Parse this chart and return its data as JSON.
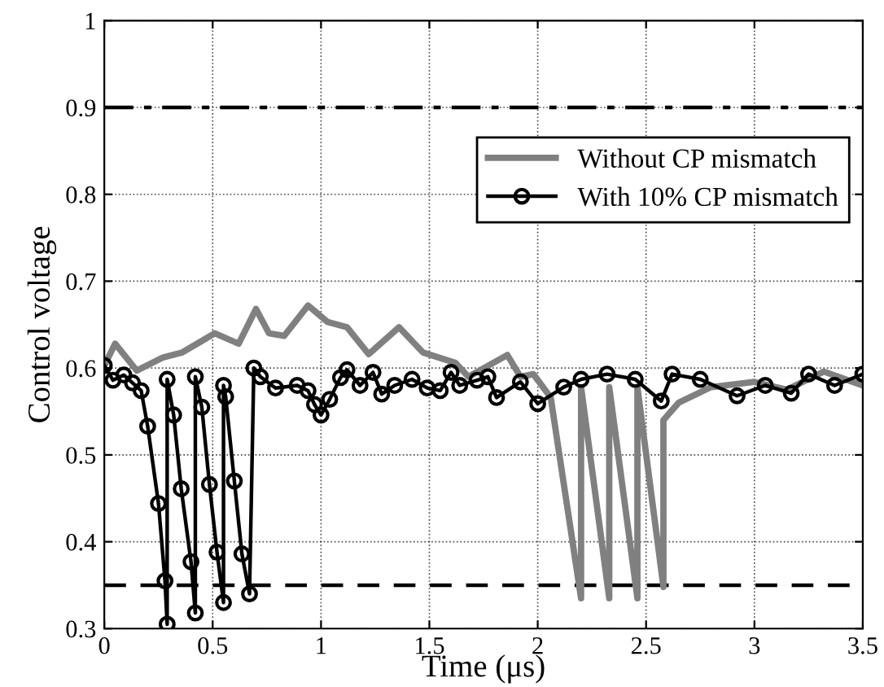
{
  "chart_data": {
    "type": "line",
    "xlabel": "Time (μs)",
    "ylabel": "Control voltage",
    "xlim": [
      0,
      3.5
    ],
    "ylim": [
      0.3,
      1
    ],
    "xticks": [
      0,
      0.5,
      1,
      1.5,
      2,
      2.5,
      3,
      3.5
    ],
    "yticks": [
      0.3,
      0.4,
      0.5,
      0.6,
      0.7,
      0.8,
      0.9,
      1
    ],
    "grid": true,
    "legend": "top right",
    "series": [
      {
        "name": "Without CP mismatch",
        "color": "#808080",
        "marker": "none",
        "x": [
          0,
          0.05,
          0.15,
          0.27,
          0.36,
          0.51,
          0.62,
          0.7,
          0.76,
          0.83,
          0.94,
          1.03,
          1.12,
          1.22,
          1.36,
          1.47,
          1.62,
          1.68,
          1.86,
          1.92,
          1.98,
          2.06,
          2.2,
          2.2,
          2.33,
          2.33,
          2.46,
          2.46,
          2.58,
          2.58,
          2.65,
          2.8,
          3.0,
          3.15,
          3.32,
          3.5
        ],
        "values": [
          0.603,
          0.628,
          0.597,
          0.612,
          0.618,
          0.64,
          0.628,
          0.668,
          0.64,
          0.637,
          0.672,
          0.653,
          0.647,
          0.616,
          0.647,
          0.618,
          0.606,
          0.59,
          0.615,
          0.59,
          0.593,
          0.566,
          0.335,
          0.578,
          0.335,
          0.578,
          0.335,
          0.578,
          0.348,
          0.54,
          0.56,
          0.578,
          0.584,
          0.575,
          0.596,
          0.58
        ]
      },
      {
        "name": "With 10% CP mismatch",
        "color": "#000000",
        "marker": "circle",
        "x": [
          0,
          0.04,
          0.09,
          0.13,
          0.17,
          0.2,
          0.25,
          0.28,
          0.29,
          0.29,
          0.32,
          0.355,
          0.4,
          0.42,
          0.42,
          0.45,
          0.485,
          0.52,
          0.55,
          0.55,
          0.56,
          0.6,
          0.635,
          0.67,
          0.69,
          0.72,
          0.79,
          0.89,
          0.94,
          0.97,
          1.0,
          1.04,
          1.09,
          1.12,
          1.18,
          1.24,
          1.28,
          1.34,
          1.42,
          1.49,
          1.55,
          1.6,
          1.64,
          1.72,
          1.77,
          1.81,
          1.92,
          2.0,
          2.12,
          2.2,
          2.32,
          2.45,
          2.57,
          2.62,
          2.75,
          2.92,
          3.05,
          3.17,
          3.25,
          3.37,
          3.5
        ],
        "values": [
          0.603,
          0.586,
          0.592,
          0.583,
          0.574,
          0.533,
          0.444,
          0.355,
          0.305,
          0.587,
          0.546,
          0.461,
          0.377,
          0.318,
          0.59,
          0.555,
          0.466,
          0.388,
          0.33,
          0.58,
          0.567,
          0.47,
          0.386,
          0.34,
          0.6,
          0.59,
          0.577,
          0.58,
          0.574,
          0.558,
          0.546,
          0.564,
          0.589,
          0.598,
          0.58,
          0.595,
          0.57,
          0.58,
          0.587,
          0.577,
          0.574,
          0.595,
          0.58,
          0.586,
          0.59,
          0.566,
          0.584,
          0.559,
          0.578,
          0.587,
          0.593,
          0.587,
          0.562,
          0.593,
          0.587,
          0.568,
          0.58,
          0.571,
          0.593,
          0.58,
          0.593
        ]
      }
    ],
    "ref_lines": [
      {
        "axis": "y",
        "value": 0.9,
        "label": null,
        "color": "#000000",
        "line_style": "dashdot"
      },
      {
        "axis": "y",
        "value": 0.35,
        "label": null,
        "color": "#000000",
        "line_style": "dashed"
      }
    ]
  }
}
